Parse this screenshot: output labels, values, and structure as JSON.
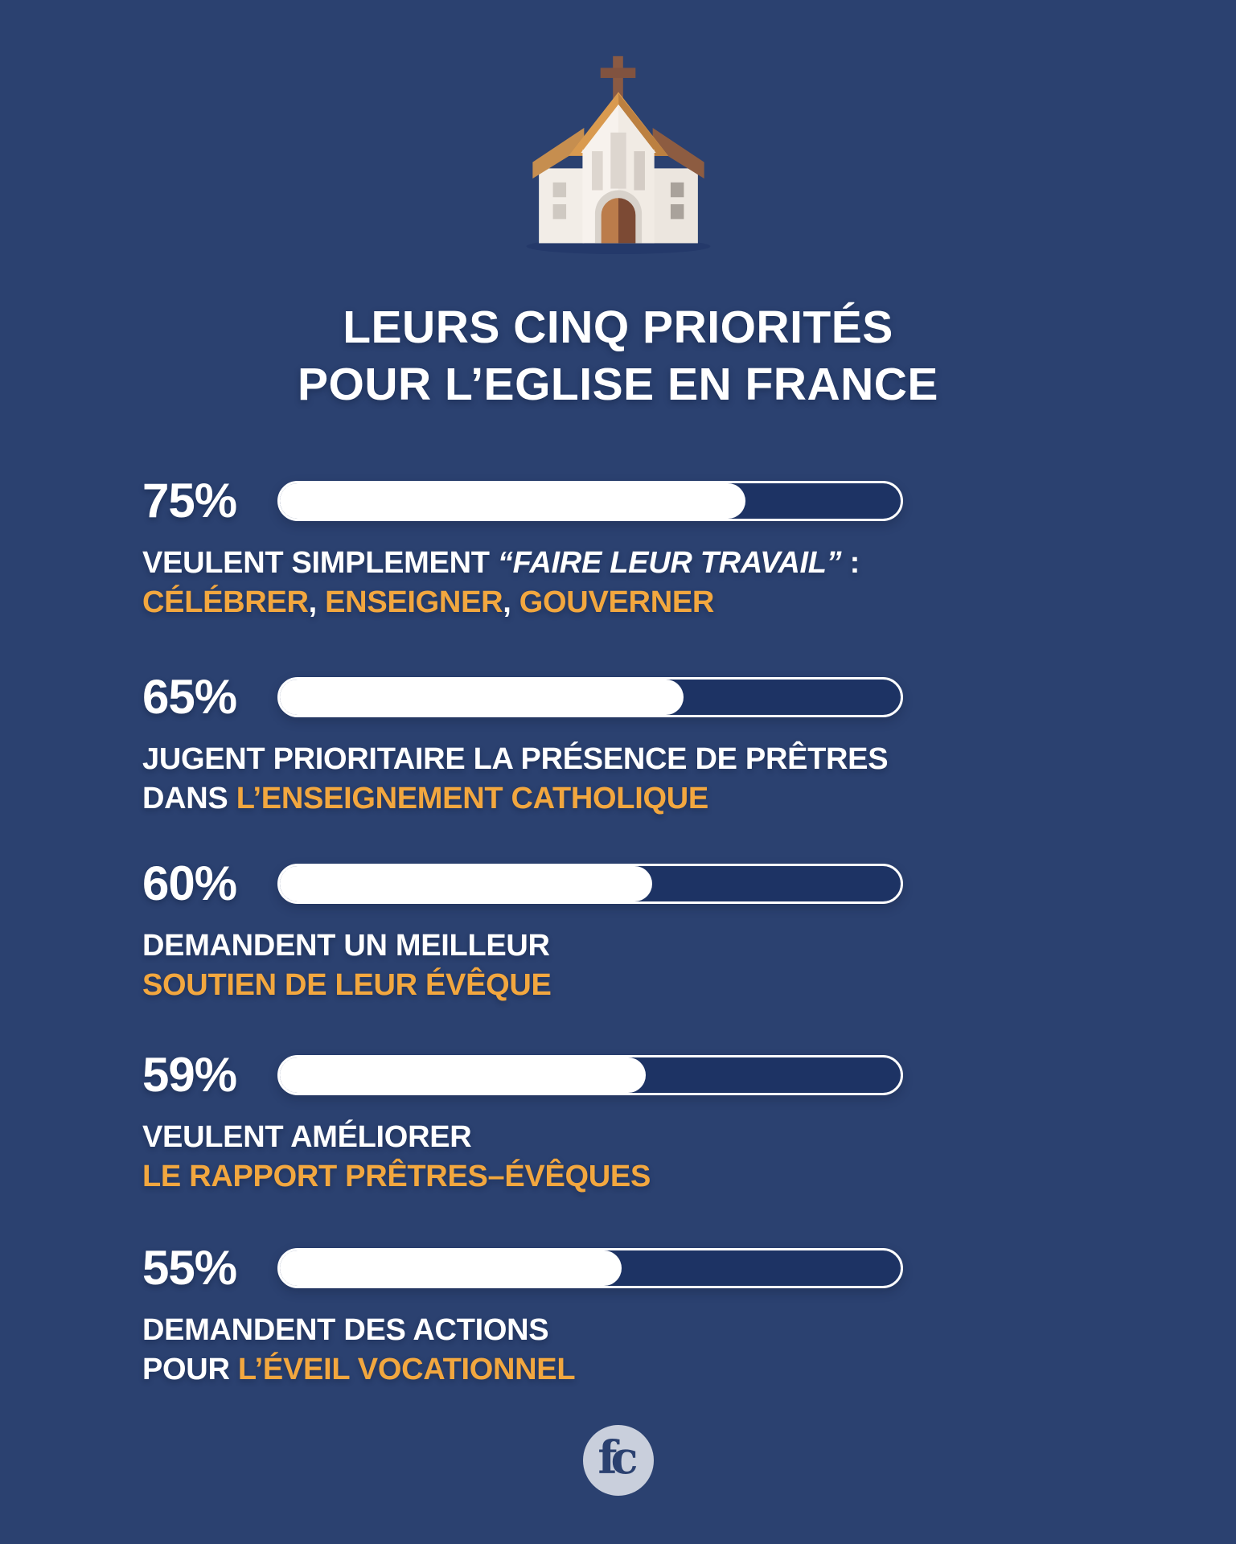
{
  "colors": {
    "background": "#2b4170",
    "accent_orange": "#f2a73f",
    "bar_track": "#1d3364",
    "bar_fill": "#ffffff",
    "logo_circle": "#c9cfdc"
  },
  "header": {
    "title_line1": "LEURS CINQ PRIORITÉS",
    "title_line2": "POUR L’EGLISE EN FRANCE"
  },
  "rows": [
    {
      "percent_label": "75%",
      "percent_value": 75,
      "line1": [
        {
          "text": "VEULENT SIMPLEMENT ",
          "style": "white"
        },
        {
          "text": "“FAIRE LEUR TRAVAIL”",
          "style": "white-italic"
        },
        {
          "text": " :",
          "style": "white"
        }
      ],
      "line2": [
        {
          "text": "CÉLÉBRER",
          "style": "orange"
        },
        {
          "text": ", ",
          "style": "white"
        },
        {
          "text": "ENSEIGNER",
          "style": "orange"
        },
        {
          "text": ", ",
          "style": "white"
        },
        {
          "text": "GOUVERNER",
          "style": "orange"
        }
      ]
    },
    {
      "percent_label": "65%",
      "percent_value": 65,
      "line1": [
        {
          "text": "JUGENT PRIORITAIRE LA PRÉSENCE DE PRÊTRES",
          "style": "white"
        }
      ],
      "line2": [
        {
          "text": "DANS ",
          "style": "white"
        },
        {
          "text": "L’ENSEIGNEMENT CATHOLIQUE",
          "style": "orange"
        }
      ]
    },
    {
      "percent_label": "60%",
      "percent_value": 60,
      "line1": [
        {
          "text": "DEMANDENT UN MEILLEUR",
          "style": "white"
        }
      ],
      "line2": [
        {
          "text": "SOUTIEN DE LEUR ÉVÊQUE",
          "style": "orange"
        }
      ]
    },
    {
      "percent_label": "59%",
      "percent_value": 59,
      "line1": [
        {
          "text": "VEULENT AMÉLIORER",
          "style": "white"
        }
      ],
      "line2": [
        {
          "text": "LE RAPPORT PRÊTRES–ÉVÊQUES",
          "style": "orange"
        }
      ]
    },
    {
      "percent_label": "55%",
      "percent_value": 55,
      "line1": [
        {
          "text": "DEMANDENT DES ACTIONS",
          "style": "white"
        }
      ],
      "line2": [
        {
          "text": "POUR ",
          "style": "white"
        },
        {
          "text": "L’ÉVEIL VOCATIONNEL",
          "style": "orange"
        }
      ]
    }
  ],
  "footer": {
    "logo_text": "fc"
  },
  "chart_data": {
    "type": "bar",
    "orientation": "horizontal",
    "title": "LEURS CINQ PRIORITÉS POUR L’EGLISE EN FRANCE",
    "categories": [
      "VEULENT SIMPLEMENT “FAIRE LEUR TRAVAIL” : CÉLÉBRER, ENSEIGNER, GOUVERNER",
      "JUGENT PRIORITAIRE LA PRÉSENCE DE PRÊTRES DANS L’ENSEIGNEMENT CATHOLIQUE",
      "DEMANDENT UN MEILLEUR SOUTIEN DE LEUR ÉVÊQUE",
      "VEULENT AMÉLIORER LE RAPPORT PRÊTRES–ÉVÊQUES",
      "DEMANDENT DES ACTIONS POUR L’ÉVEIL VOCATIONNEL"
    ],
    "values": [
      75,
      65,
      60,
      59,
      55
    ],
    "unit": "%",
    "xlim": [
      0,
      100
    ],
    "grid": false,
    "legend": "none"
  }
}
